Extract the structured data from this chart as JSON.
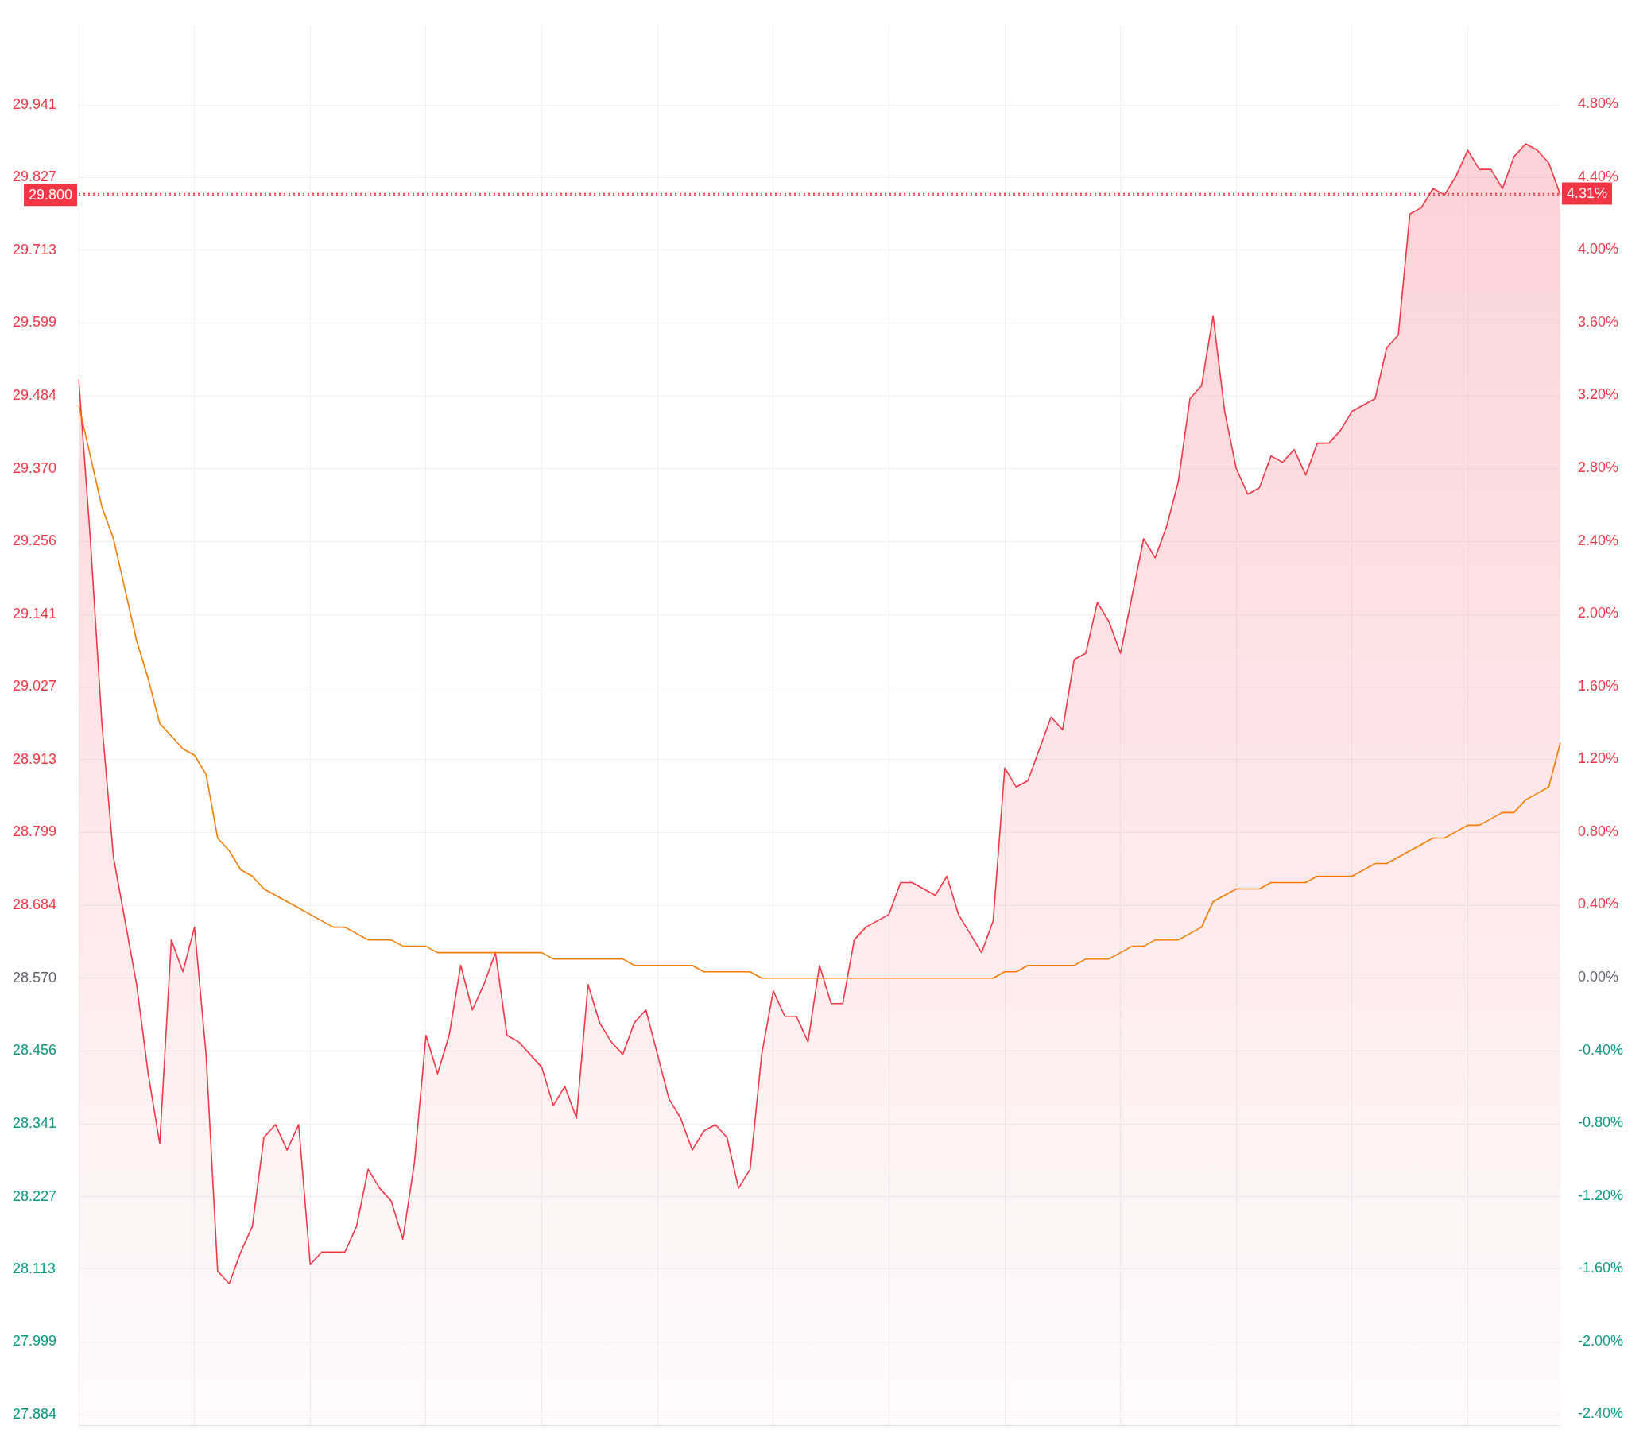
{
  "chart_data": {
    "type": "area",
    "categories": [
      null,
      null,
      null,
      null,
      null,
      null,
      null,
      null,
      null,
      null,
      null,
      null,
      null,
      null,
      null,
      null,
      null,
      null,
      null,
      null,
      null,
      null,
      null,
      null,
      null,
      null,
      null,
      null,
      null,
      null,
      null,
      null,
      null,
      null,
      null,
      null,
      null,
      null,
      null,
      null,
      null,
      null,
      null,
      null,
      null,
      null,
      null,
      null,
      null,
      null,
      null,
      null,
      null,
      null,
      null,
      null,
      null,
      null,
      null,
      null,
      null,
      null,
      null,
      null,
      null,
      null,
      null,
      null,
      null,
      null,
      null,
      null,
      null,
      null,
      null,
      null,
      null,
      null,
      null,
      null,
      null,
      null,
      null,
      null,
      null,
      null,
      null,
      null,
      null,
      null,
      null,
      null,
      null,
      null,
      null,
      null,
      null,
      null,
      null,
      null,
      null,
      null,
      null,
      null,
      null,
      null,
      null,
      null,
      null,
      null,
      null,
      null,
      null,
      null,
      null,
      null,
      null,
      null,
      null,
      null,
      null,
      null,
      null,
      null,
      null,
      null,
      null,
      null,
      null
    ],
    "series": [
      {
        "type": "area",
        "color": "#f23645",
        "values": [
          29.51,
          29.26,
          28.97,
          28.76,
          28.66,
          28.56,
          28.42,
          28.31,
          28.63,
          28.58,
          28.65,
          28.45,
          28.11,
          28.09,
          28.14,
          28.18,
          28.32,
          28.34,
          28.3,
          28.34,
          28.12,
          28.14,
          28.14,
          28.14,
          28.18,
          28.27,
          28.24,
          28.22,
          28.16,
          28.28,
          28.48,
          28.42,
          28.48,
          28.59,
          28.52,
          28.56,
          28.61,
          28.48,
          28.47,
          28.45,
          28.43,
          28.37,
          28.4,
          28.35,
          28.56,
          28.5,
          28.47,
          28.45,
          28.5,
          28.52,
          28.45,
          28.38,
          28.35,
          28.3,
          28.33,
          28.34,
          28.32,
          28.24,
          28.27,
          28.45,
          28.55,
          28.51,
          28.51,
          28.47,
          28.59,
          28.53,
          28.53,
          28.63,
          28.65,
          28.66,
          28.67,
          28.72,
          28.72,
          28.71,
          28.7,
          28.73,
          28.67,
          28.64,
          28.61,
          28.66,
          28.9,
          28.87,
          28.88,
          28.93,
          28.98,
          28.96,
          29.07,
          29.08,
          29.16,
          29.13,
          29.08,
          29.17,
          29.26,
          29.23,
          29.28,
          29.35,
          29.48,
          29.5,
          29.61,
          29.46,
          29.37,
          29.33,
          29.34,
          29.39,
          29.38,
          29.4,
          29.36,
          29.41,
          29.41,
          29.43,
          29.46,
          29.47,
          29.48,
          29.56,
          29.58,
          29.77,
          29.78,
          29.81,
          29.8,
          29.83,
          29.87,
          29.84,
          29.84,
          29.81,
          29.86,
          29.88,
          29.87,
          29.85,
          29.8
        ]
      },
      {
        "type": "line",
        "color": "#f57c00",
        "values": [
          29.47,
          29.39,
          29.31,
          29.26,
          29.18,
          29.1,
          29.04,
          28.97,
          28.95,
          28.93,
          28.92,
          28.89,
          28.79,
          28.77,
          28.74,
          28.73,
          28.71,
          28.7,
          28.69,
          28.68,
          28.67,
          28.66,
          28.65,
          28.65,
          28.64,
          28.63,
          28.63,
          28.63,
          28.62,
          28.62,
          28.62,
          28.61,
          28.61,
          28.61,
          28.61,
          28.61,
          28.61,
          28.61,
          28.61,
          28.61,
          28.61,
          28.6,
          28.6,
          28.6,
          28.6,
          28.6,
          28.6,
          28.6,
          28.59,
          28.59,
          28.59,
          28.59,
          28.59,
          28.59,
          28.58,
          28.58,
          28.58,
          28.58,
          28.58,
          28.57,
          28.57,
          28.57,
          28.57,
          28.57,
          28.57,
          28.57,
          28.57,
          28.57,
          28.57,
          28.57,
          28.57,
          28.57,
          28.57,
          28.57,
          28.57,
          28.57,
          28.57,
          28.57,
          28.57,
          28.57,
          28.58,
          28.58,
          28.59,
          28.59,
          28.59,
          28.59,
          28.59,
          28.6,
          28.6,
          28.6,
          28.61,
          28.62,
          28.62,
          28.63,
          28.63,
          28.63,
          28.64,
          28.65,
          28.69,
          28.7,
          28.71,
          28.71,
          28.71,
          28.72,
          28.72,
          28.72,
          28.72,
          28.73,
          28.73,
          28.73,
          28.73,
          28.74,
          28.75,
          28.75,
          28.76,
          28.77,
          28.78,
          28.79,
          28.79,
          28.8,
          28.81,
          28.81,
          28.82,
          28.83,
          28.83,
          28.85,
          28.86,
          28.87,
          28.94
        ]
      }
    ],
    "ylim": [
      27.868,
      30.065
    ],
    "yticks": [
      27.884,
      27.999,
      28.113,
      28.227,
      28.341,
      28.456,
      {
        "value": 28.57,
        "label": "28.570"
      },
      28.684,
      28.799,
      28.913,
      29.027,
      29.141,
      29.256,
      {
        "value": 29.37,
        "label": "29.370"
      },
      29.484,
      29.599,
      29.713,
      29.827,
      29.941
    ],
    "y2lim": [
      -2.46,
      5.23
    ],
    "y2ticks": [
      {
        "value": -2.4,
        "label": "-2.40%"
      },
      {
        "value": -2.0,
        "label": "-2.00%"
      },
      {
        "value": -1.6,
        "label": "-1.60%"
      },
      {
        "value": -1.2,
        "label": "-1.20%"
      },
      {
        "value": -0.8,
        "label": "-0.80%"
      },
      {
        "value": -0.4,
        "label": "-0.40%"
      },
      {
        "value": 0,
        "label": "0.00%"
      },
      {
        "value": 0.4,
        "label": "0.40%"
      },
      {
        "value": 0.8,
        "label": "0.80%"
      },
      {
        "value": 1.2,
        "label": "1.20%"
      },
      {
        "value": 1.6,
        "label": "1.60%"
      },
      {
        "value": 2.0,
        "label": "2.00%"
      },
      {
        "value": 2.4,
        "label": "2.40%"
      },
      {
        "value": 2.8,
        "label": "2.80%"
      },
      {
        "value": 3.2,
        "label": "3.20%"
      },
      {
        "value": 3.6,
        "label": "3.60%"
      },
      {
        "value": 4.0,
        "label": "4.00%"
      },
      {
        "value": 4.4,
        "label": "4.40%"
      },
      {
        "value": 4.8,
        "label": "4.80%"
      }
    ],
    "ref_lines": [
      {
        "axis": "y",
        "value": 29.8,
        "label": "29.800",
        "color": "#f23645",
        "line_style": "dotted"
      },
      {
        "axis": "y2",
        "value": 4.31,
        "label": "4.31%",
        "color": "#f23645",
        "line_style": "dotted"
      }
    ],
    "grid": true,
    "legend": false,
    "marker": "none"
  }
}
